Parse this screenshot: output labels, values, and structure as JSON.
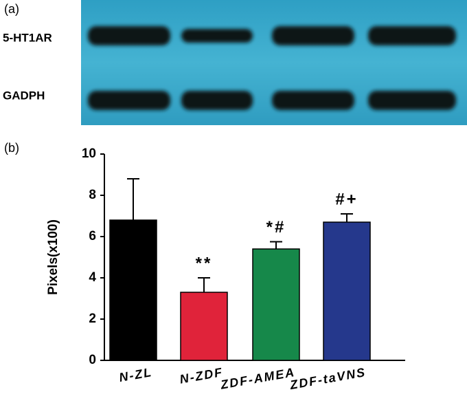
{
  "panel_a": {
    "label": "(a)",
    "rows": [
      "5-HT1AR",
      "GADPH"
    ]
  },
  "chart_data": {
    "type": "bar",
    "panel_label": "(b)",
    "ylabel": "Pixels(x100)",
    "categories": [
      "N-ZL",
      "N-ZDF",
      "ZDF-AMEA",
      "ZDF-taVNS"
    ],
    "values": [
      6.8,
      3.3,
      5.4,
      6.7
    ],
    "errors": [
      2.0,
      0.7,
      0.35,
      0.4
    ],
    "colors": [
      "#000000",
      "#e0233a",
      "#16884a",
      "#25388c"
    ],
    "annotations": [
      null,
      "**",
      "*#",
      "#+"
    ],
    "ylim": [
      0,
      10
    ],
    "yticks": [
      0,
      2,
      4,
      6,
      8,
      10
    ]
  }
}
